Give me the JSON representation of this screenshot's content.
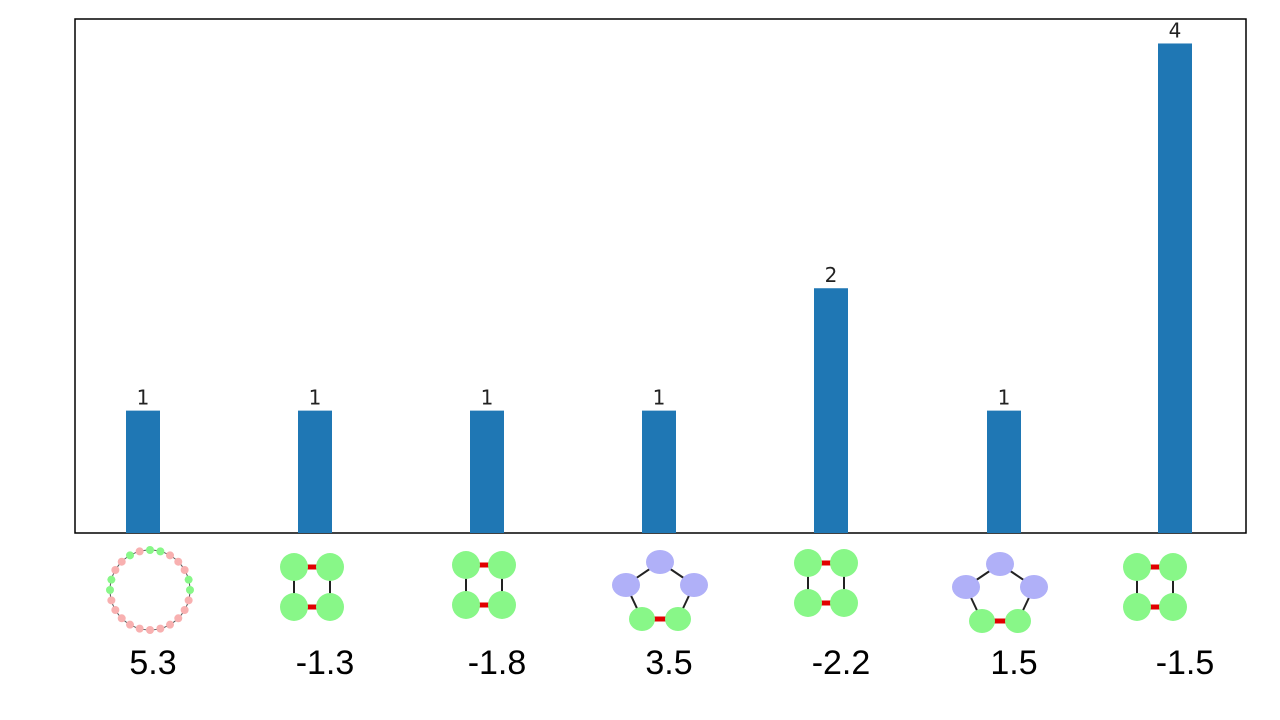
{
  "chart_data": {
    "type": "bar",
    "categories": [
      "5.3",
      "-1.3",
      "-1.8",
      "3.5",
      "-2.2",
      "1.5",
      "-1.5"
    ],
    "values": [
      1,
      1,
      1,
      1,
      2,
      1,
      4
    ],
    "data_labels": [
      "1",
      "1",
      "1",
      "1",
      "2",
      "1",
      "4"
    ],
    "category_glyphs": [
      "large-ring-molecule",
      "four-ring-molecule",
      "four-ring-molecule",
      "five-ring-molecule",
      "four-ring-molecule",
      "five-ring-molecule",
      "four-ring-molecule"
    ],
    "ylim": [
      0,
      4.2
    ],
    "grid": false,
    "title": "",
    "xlabel": "",
    "ylabel": ""
  },
  "colors": {
    "bar": "#1f77b4",
    "green_node": "#88f788",
    "purple_node": "#b0b0f8",
    "pink_node": "#f8b0b0",
    "red_bond": "#e00000",
    "black_bond": "#222222",
    "frame": "#000000"
  }
}
